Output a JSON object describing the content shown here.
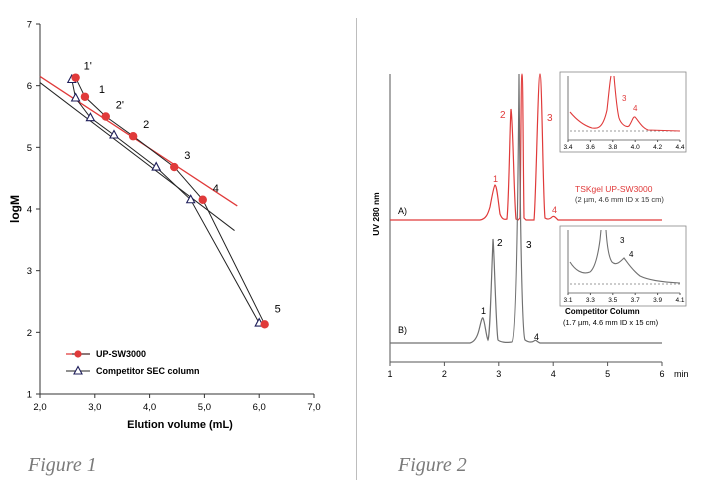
{
  "figure1": {
    "caption": "Figure 1",
    "chart_data": {
      "type": "scatter",
      "xlabel": "Elution volume (mL)",
      "ylabel": "logM",
      "xlim": [
        2.0,
        7.0
      ],
      "ylim": [
        1,
        7
      ],
      "x_ticks": [
        "2,0",
        "3,0",
        "4,0",
        "5,0",
        "6,0",
        "7,0"
      ],
      "y_ticks": [
        "1",
        "2",
        "3",
        "4",
        "5",
        "6",
        "7"
      ],
      "series": [
        {
          "name": "UP-SW3000",
          "color": "#e03a3a",
          "marker": "circle",
          "points": [
            {
              "x": 2.65,
              "y": 6.13,
              "label": "1'"
            },
            {
              "x": 2.82,
              "y": 5.82,
              "label": "1"
            },
            {
              "x": 3.2,
              "y": 5.5,
              "label": "2'"
            },
            {
              "x": 3.7,
              "y": 5.18,
              "label": "2"
            },
            {
              "x": 4.45,
              "y": 4.68,
              "label": "3"
            },
            {
              "x": 4.97,
              "y": 4.15,
              "label": "4"
            },
            {
              "x": 6.1,
              "y": 2.13,
              "label": "5"
            }
          ],
          "fit_line": [
            [
              2.0,
              6.15
            ],
            [
              5.6,
              4.05
            ]
          ]
        },
        {
          "name": "Competitor SEC column",
          "color": "#1d1d5a",
          "marker": "triangle-open",
          "points": [
            {
              "x": 2.58,
              "y": 6.1
            },
            {
              "x": 2.65,
              "y": 5.8
            },
            {
              "x": 2.92,
              "y": 5.48
            },
            {
              "x": 3.35,
              "y": 5.2
            },
            {
              "x": 4.12,
              "y": 4.68
            },
            {
              "x": 4.75,
              "y": 4.15
            },
            {
              "x": 6.0,
              "y": 2.15
            }
          ],
          "fit_line": [
            [
              2.0,
              6.05
            ],
            [
              5.55,
              3.65
            ]
          ]
        }
      ],
      "legend_position": "bottom-left"
    }
  },
  "figure2": {
    "caption": "Figure 2",
    "chart_data": {
      "type": "line",
      "ylabel": "UV 280 nm",
      "x_unit": "min",
      "xlim": [
        1,
        6
      ],
      "x_ticks": [
        "1",
        "2",
        "3",
        "4",
        "5",
        "6",
        "min"
      ],
      "series": [
        {
          "name": "TSKgel UP-SW3000",
          "trace_label": "A)",
          "annotation": [
            "TSKgel UP-SW3000",
            "(2 µm, 4.6 mm ID x 15 cm)"
          ],
          "color": "#e03a3a",
          "peaks": [
            {
              "label": "1",
              "x": 2.93
            },
            {
              "label": "2",
              "x": 3.22
            },
            {
              "label": "3",
              "x": 3.75
            },
            {
              "label": "4",
              "x": 3.97
            }
          ]
        },
        {
          "name": "Competitor Column",
          "trace_label": "B)",
          "annotation": [
            "Competitor Column",
            "(1.7 µm, 4.6 mm ID x 15 cm)"
          ],
          "color": "#707070",
          "peaks": [
            {
              "label": "1",
              "x": 2.72
            },
            {
              "label": "2",
              "x": 2.93
            },
            {
              "label": "3",
              "x": 3.42
            },
            {
              "label": "4",
              "x": 3.62
            }
          ]
        }
      ],
      "insets": [
        {
          "x_ticks": [
            "3.4",
            "3.6",
            "3.8",
            "4.0",
            "4.2",
            "4.4"
          ],
          "peak_labels": [
            "3",
            "4"
          ],
          "color": "#e03a3a"
        },
        {
          "x_ticks": [
            "3.1",
            "3.3",
            "3.5",
            "3.7",
            "3.9",
            "4.1"
          ],
          "peak_labels": [
            "3",
            "4"
          ],
          "color": "#707070"
        }
      ]
    }
  }
}
